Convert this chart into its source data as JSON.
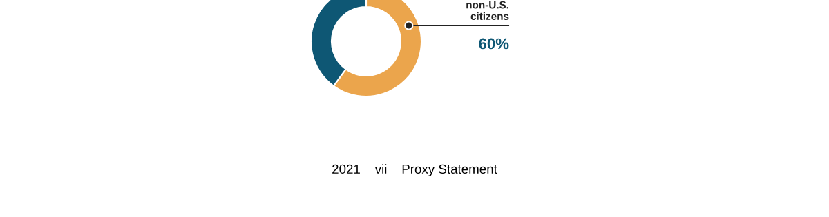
{
  "chart_data": {
    "type": "donut",
    "categories": [
      "non-U.S.\ncitizens",
      null
    ],
    "values": [
      60,
      40
    ],
    "colors": [
      "#eba54c",
      "#0e5774"
    ],
    "value_labels": [
      "60%",
      null
    ],
    "annotations": [
      "2021    vii    Proxy Statement"
    ]
  }
}
